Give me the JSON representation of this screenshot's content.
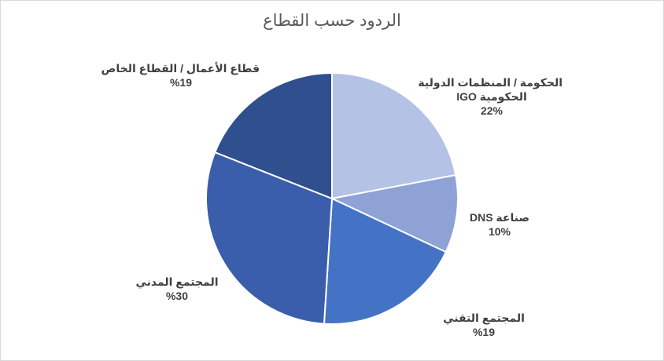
{
  "chart_data": {
    "type": "pie",
    "title": "الردود حسب القطاع",
    "start_angle": "12 o'clock, clockwise",
    "slices": [
      {
        "label_lines": [
          "الحكومة / المنظمات الدولية",
          "الحكومية IGO"
        ],
        "value": 22,
        "value_label": "22%",
        "color": "#b4c2e6"
      },
      {
        "label_lines": [
          "صناعة DNS"
        ],
        "value": 10,
        "value_label": "10%",
        "color": "#8fa2d5"
      },
      {
        "label_lines": [
          "المجتمع التقني"
        ],
        "value": 19,
        "value_label": "%19",
        "color": "#4472c4"
      },
      {
        "label_lines": [
          "المجتمع المدني"
        ],
        "value": 30,
        "value_label": "%30",
        "color": "#3a5eab"
      },
      {
        "label_lines": [
          "قطاع الأعمال / القطاع الخاص"
        ],
        "value": 19,
        "value_label": "%19",
        "color": "#2f4f8f"
      }
    ]
  }
}
